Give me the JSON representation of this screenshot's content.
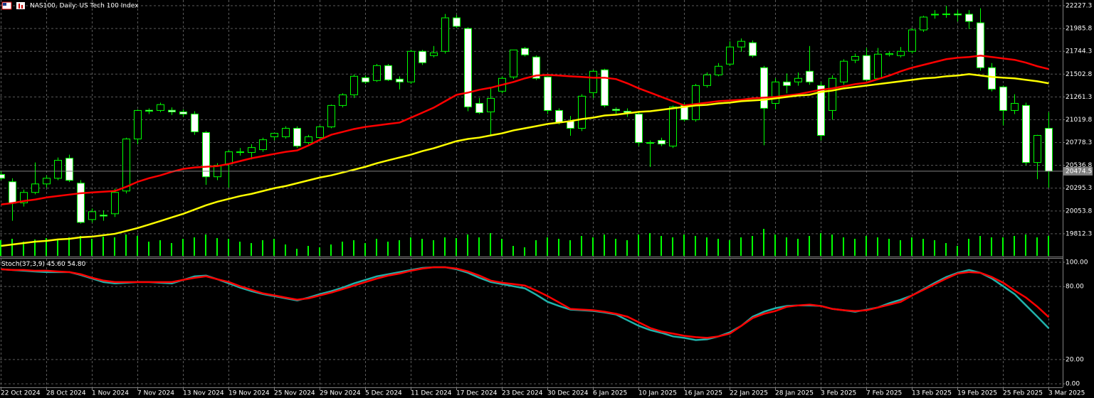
{
  "chart_data": [
    {
      "type": "candlestick",
      "title": "NAS100, Daily:  US Tech 100 Index",
      "categories": [
        "22 Oct 2024",
        null,
        null,
        null,
        "28 Oct 2024",
        null,
        null,
        null,
        "1 Nov 2024",
        null,
        null,
        null,
        "7 Nov 2024",
        null,
        null,
        null,
        "13 Nov 2024",
        null,
        null,
        null,
        "19 Nov 2024",
        null,
        null,
        null,
        "25 Nov 2024",
        null,
        null,
        null,
        "29 Nov 2024",
        null,
        null,
        null,
        "5 Dec 2024",
        null,
        null,
        null,
        "11 Dec 2024",
        null,
        null,
        null,
        "17 Dec 2024",
        null,
        null,
        null,
        "23 Dec 2024",
        null,
        null,
        null,
        "30 Dec 2024",
        null,
        null,
        null,
        "6 Jan 2025",
        null,
        null,
        null,
        "10 Jan 2025",
        null,
        null,
        null,
        "16 Jan 2025",
        null,
        null,
        null,
        "22 Jan 2025",
        null,
        null,
        null,
        "28 Jan 2025",
        null,
        null,
        null,
        "3 Feb 2025",
        null,
        null,
        null,
        "7 Feb 2025",
        null,
        null,
        null,
        "13 Feb 2025",
        null,
        null,
        null,
        "19 Feb 2025",
        null,
        null,
        null,
        "25 Feb 2025",
        null,
        null,
        null,
        "3 Mar 2025"
      ],
      "open": [
        20440,
        20363,
        20140,
        20250,
        20340,
        20400,
        20612,
        20348,
        19963,
        20010,
        20024,
        20265,
        20816,
        21120,
        21118,
        21120,
        21103,
        21080,
        20884,
        20416,
        20552,
        20680,
        20673,
        20703,
        20839,
        20839,
        20929,
        20778,
        20831,
        20944,
        21171,
        21284,
        21465,
        21435,
        21593,
        21450,
        21420,
        21744,
        21699,
        21744,
        22099,
        21986,
        21193,
        21103,
        21322,
        21473,
        21775,
        21684,
        21473,
        21118,
        21005,
        20929,
        21307,
        21548,
        21130,
        21110,
        21080,
        20778,
        20801,
        20741,
        21171,
        21020,
        21382,
        21495,
        21609,
        21790,
        21835,
        21571,
        21193,
        21420,
        21420,
        21533,
        21382,
        21118,
        21420,
        21650,
        21699,
        21458,
        21710,
        21699,
        21744,
        21971,
        22130,
        22137,
        22140,
        22137,
        22046,
        21571,
        21367,
        21118,
        21171,
        20567,
        20929
      ],
      "high": [
        20480,
        20400,
        20280,
        20567,
        20430,
        20620,
        20650,
        20380,
        20080,
        20060,
        20290,
        20830,
        21130,
        21140,
        21200,
        21150,
        21130,
        21110,
        20900,
        20560,
        20700,
        20720,
        20760,
        20830,
        20880,
        20950,
        20950,
        20860,
        20960,
        21180,
        21300,
        21500,
        21490,
        21610,
        21610,
        21480,
        21760,
        21760,
        21800,
        22140,
        22130,
        22000,
        21250,
        21360,
        21480,
        21760,
        21790,
        21700,
        21480,
        21140,
        21060,
        21290,
        21550,
        21560,
        21150,
        21140,
        21100,
        20800,
        20830,
        21170,
        21200,
        21400,
        21520,
        21620,
        21850,
        21880,
        21860,
        21590,
        21460,
        21510,
        21520,
        21800,
        21420,
        21490,
        21660,
        21720,
        21780,
        21780,
        21740,
        21790,
        21990,
        22120,
        22180,
        22227,
        22180,
        22180,
        22200,
        21620,
        21380,
        21290,
        21200,
        20860,
        21100
      ],
      "low": [
        20380,
        19950,
        20100,
        20230,
        20300,
        20380,
        20360,
        19920,
        19930,
        19950,
        19990,
        20240,
        20760,
        21080,
        21100,
        21070,
        21050,
        20860,
        20330,
        20380,
        20300,
        20640,
        20600,
        20680,
        20800,
        20820,
        20720,
        20760,
        20800,
        20930,
        21150,
        21250,
        21400,
        21420,
        21430,
        21340,
        21400,
        21600,
        21680,
        21720,
        21990,
        21110,
        21080,
        20850,
        21300,
        21450,
        21690,
        21440,
        21080,
        20970,
        20850,
        20900,
        21250,
        21150,
        21070,
        21050,
        20740,
        20520,
        20740,
        20720,
        21000,
        21000,
        21360,
        21480,
        21590,
        21740,
        21680,
        20750,
        21130,
        21300,
        21380,
        21390,
        20800,
        21020,
        21390,
        21620,
        21430,
        21440,
        21690,
        21680,
        21720,
        21950,
        22090,
        22100,
        22060,
        21980,
        21540,
        21320,
        20960,
        21080,
        20540,
        20390,
        20300
      ],
      "close": [
        20400,
        20137,
        20250,
        20340,
        20400,
        20590,
        20378,
        19933,
        20046,
        20000,
        20250,
        20816,
        21118,
        21110,
        21180,
        21103,
        21080,
        20892,
        20416,
        20537,
        20680,
        20675,
        20725,
        20808,
        20876,
        20929,
        20741,
        20839,
        20944,
        21171,
        21284,
        21480,
        21420,
        21593,
        21442,
        21420,
        21744,
        21624,
        21729,
        22099,
        22009,
        21156,
        21095,
        21246,
        21458,
        21759,
        21707,
        21458,
        21118,
        20990,
        20929,
        21269,
        21533,
        21171,
        21118,
        21095,
        20778,
        20770,
        20763,
        21156,
        21020,
        21382,
        21495,
        21586,
        21790,
        21850,
        21699,
        21141,
        21420,
        21382,
        21458,
        21420,
        20854,
        21458,
        21639,
        21690,
        21442,
        21714,
        21720,
        21744,
        21971,
        22107,
        22137,
        22140,
        22130,
        22061,
        21571,
        21344,
        21118,
        21193,
        20567,
        20854,
        20474.5
      ],
      "volume": [
        22,
        24,
        20,
        23,
        25,
        22,
        26,
        28,
        24,
        27,
        26,
        30,
        28,
        20,
        22,
        18,
        24,
        26,
        30,
        25,
        24,
        20,
        18,
        22,
        24,
        16,
        10,
        14,
        12,
        16,
        20,
        22,
        18,
        24,
        20,
        22,
        26,
        24,
        22,
        26,
        25,
        30,
        26,
        32,
        24,
        14,
        12,
        22,
        26,
        24,
        22,
        28,
        26,
        30,
        24,
        22,
        30,
        32,
        28,
        26,
        30,
        28,
        26,
        24,
        22,
        26,
        28,
        38,
        30,
        26,
        24,
        28,
        32,
        30,
        26,
        24,
        28,
        26,
        24,
        22,
        26,
        24,
        22,
        18,
        14,
        24,
        28,
        26,
        26,
        28,
        30,
        26,
        28
      ],
      "volume_color": "#00ff00",
      "candle_color": "#00ff00",
      "bull_fill": "#000000",
      "bear_fill": "#ffffff",
      "lines": [
        {
          "color": "#ff0000",
          "values": [
            20122,
            20137,
            20159,
            20175,
            20197,
            20212,
            20227,
            20242,
            20250,
            20258,
            20265,
            20310,
            20363,
            20401,
            20431,
            20469,
            20499,
            20514,
            20522,
            20529,
            20552,
            20582,
            20612,
            20635,
            20658,
            20680,
            20695,
            20748,
            20808,
            20861,
            20891,
            20922,
            20944,
            20959,
            20975,
            20990,
            21042,
            21095,
            21148,
            21216,
            21284,
            21307,
            21337,
            21359,
            21390,
            21420,
            21458,
            21488,
            21495,
            21488,
            21480,
            21473,
            21465,
            21465,
            21450,
            21405,
            21352,
            21307,
            21261,
            21216,
            21171,
            21186,
            21201,
            21216,
            21224,
            21231,
            21246,
            21254,
            21261,
            21276,
            21291,
            21314,
            21337,
            21352,
            21374,
            21397,
            21412,
            21450,
            21488,
            21533,
            21571,
            21601,
            21631,
            21661,
            21676,
            21684,
            21699,
            21684,
            21669,
            21654,
            21624,
            21586,
            21556
          ]
        },
        {
          "color": "#ffff00",
          "values": [
            19684,
            19699,
            19714,
            19729,
            19737,
            19752,
            19759,
            19775,
            19782,
            19797,
            19812,
            19842,
            19873,
            19910,
            19948,
            19986,
            20024,
            20069,
            20114,
            20152,
            20182,
            20212,
            20235,
            20265,
            20295,
            20318,
            20348,
            20378,
            20408,
            20431,
            20461,
            20491,
            20522,
            20559,
            20590,
            20620,
            20650,
            20688,
            20718,
            20756,
            20793,
            20816,
            20831,
            20854,
            20876,
            20907,
            20929,
            20952,
            20975,
            20990,
            21005,
            21027,
            21042,
            21065,
            21073,
            21088,
            21103,
            21110,
            21125,
            21141,
            21156,
            21171,
            21178,
            21193,
            21201,
            21216,
            21224,
            21231,
            21246,
            21261,
            21276,
            21284,
            21314,
            21329,
            21352,
            21367,
            21382,
            21397,
            21412,
            21427,
            21442,
            21458,
            21465,
            21480,
            21488,
            21503,
            21488,
            21473,
            21465,
            21458,
            21442,
            21427,
            21405
          ]
        }
      ],
      "ylim": [
        19570.8,
        22287.7
      ],
      "yticks": [
        22227.3,
        21985.8,
        21744.3,
        21502.8,
        21261.3,
        21019.8,
        20778.3,
        20536.8,
        20295.3,
        20053.8,
        19812.3
      ],
      "grid": true
    },
    {
      "type": "line",
      "title": "Stoch(37,3,9)",
      "series": [
        {
          "color": "#20b2aa",
          "values": [
            94.2,
            93.6,
            93.0,
            92.4,
            91.9,
            91.9,
            91.9,
            89.5,
            86.6,
            83.7,
            82.6,
            83.1,
            83.7,
            83.7,
            83.1,
            82.6,
            85.5,
            88.4,
            89.0,
            86.0,
            82.6,
            79.1,
            76.2,
            73.8,
            72.1,
            70.3,
            68.6,
            70.9,
            73.8,
            76.2,
            79.1,
            82.6,
            85.5,
            88.4,
            90.1,
            91.9,
            93.6,
            95.3,
            95.9,
            95.9,
            94.2,
            91.3,
            87.2,
            83.7,
            82.0,
            80.2,
            78.5,
            73.3,
            67.4,
            64.0,
            61.0,
            60.5,
            59.9,
            58.7,
            57.0,
            52.3,
            47.7,
            44.2,
            41.9,
            39.0,
            37.8,
            36.0,
            36.6,
            39.0,
            42.4,
            47.7,
            55.2,
            59.3,
            62.2,
            64.0,
            64.5,
            64.5,
            64.0,
            61.6,
            60.5,
            59.3,
            61.0,
            62.8,
            66.3,
            69.2,
            72.7,
            77.9,
            83.1,
            87.8,
            91.3,
            93.6,
            91.3,
            86.6,
            80.2,
            73.8,
            64.5,
            55.2,
            45.6
          ],
          "value_label": "45.60"
        },
        {
          "color": "#ff0000",
          "values": [
            94.2,
            93.6,
            93.6,
            93.0,
            93.0,
            92.4,
            91.9,
            90.1,
            87.2,
            84.9,
            83.7,
            83.7,
            83.7,
            83.7,
            83.7,
            83.7,
            85.5,
            87.2,
            88.4,
            86.0,
            83.7,
            80.2,
            77.3,
            74.4,
            72.7,
            70.9,
            69.2,
            70.3,
            72.7,
            75.0,
            77.9,
            80.8,
            83.7,
            86.6,
            89.0,
            90.7,
            93.0,
            94.8,
            95.9,
            95.9,
            94.8,
            92.4,
            89.0,
            84.9,
            83.1,
            82.0,
            80.8,
            76.7,
            72.1,
            66.9,
            61.6,
            61.0,
            60.5,
            59.3,
            57.6,
            55.2,
            50.6,
            45.9,
            43.0,
            41.3,
            39.5,
            38.4,
            37.8,
            39.0,
            41.3,
            47.7,
            54.1,
            57.6,
            59.9,
            63.4,
            64.5,
            65.1,
            64.0,
            61.6,
            60.5,
            59.9,
            60.5,
            62.8,
            65.1,
            67.4,
            72.7,
            77.3,
            82.0,
            86.6,
            90.7,
            91.9,
            91.3,
            87.8,
            83.1,
            76.7,
            70.9,
            63.4,
            54.8
          ],
          "value_label": "54.80"
        }
      ],
      "ylim": [
        -2.9,
        102.9
      ],
      "yticks": [
        {
          "value": 100,
          "label": "100.00"
        },
        {
          "value": 80,
          "label": "80.00"
        },
        {
          "value": 20,
          "label": "20.00"
        },
        {
          "value": 0,
          "label": "0.00"
        }
      ],
      "grid": true
    }
  ]
}
